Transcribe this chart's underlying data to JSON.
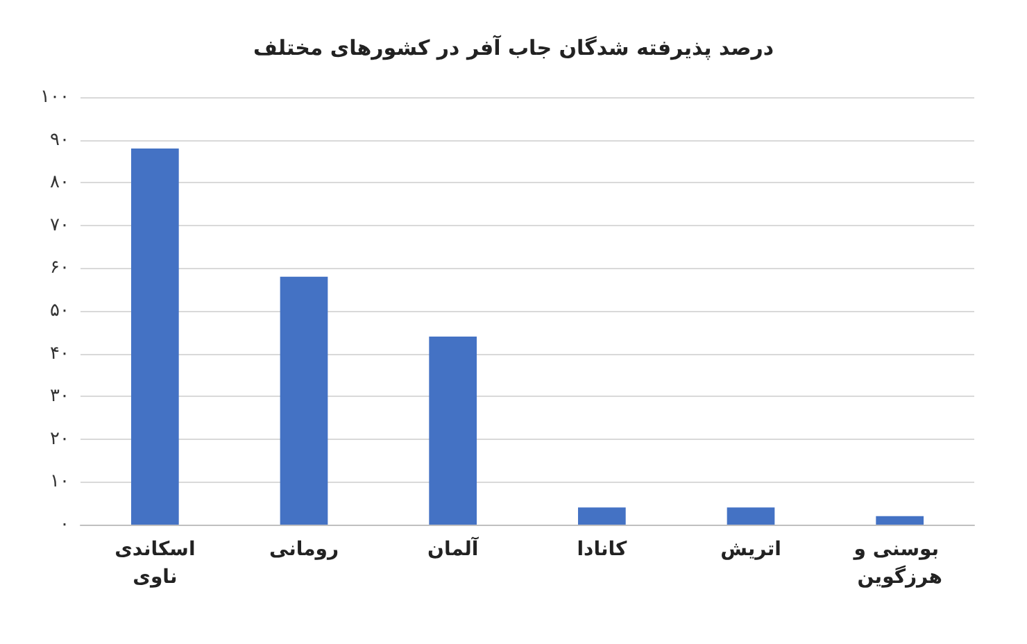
{
  "chart_data": {
    "type": "bar",
    "title": "درصد پذیرفته شدگان جاب آفر در کشورهای مختلف",
    "categories": [
      "اسکاندیناوی",
      "رومانی",
      "آلمان",
      "کانادا",
      "اتریش",
      "بوسنی و هرزگوین"
    ],
    "values": [
      88,
      58,
      44,
      4,
      4,
      2
    ],
    "color": "#4472c4",
    "ylim": [
      0,
      100
    ],
    "yticks": [
      {
        "value": 0,
        "label": "۰"
      },
      {
        "value": 10,
        "label": "۱۰"
      },
      {
        "value": 20,
        "label": "۲۰"
      },
      {
        "value": 30,
        "label": "۳۰"
      },
      {
        "value": 40,
        "label": "۴۰"
      },
      {
        "value": 50,
        "label": "۵۰"
      },
      {
        "value": 60,
        "label": "۶۰"
      },
      {
        "value": 70,
        "label": "۷۰"
      },
      {
        "value": 80,
        "label": "۸۰"
      },
      {
        "value": 90,
        "label": "۹۰"
      },
      {
        "value": 100,
        "label": "۱۰۰"
      }
    ],
    "grid": true
  }
}
